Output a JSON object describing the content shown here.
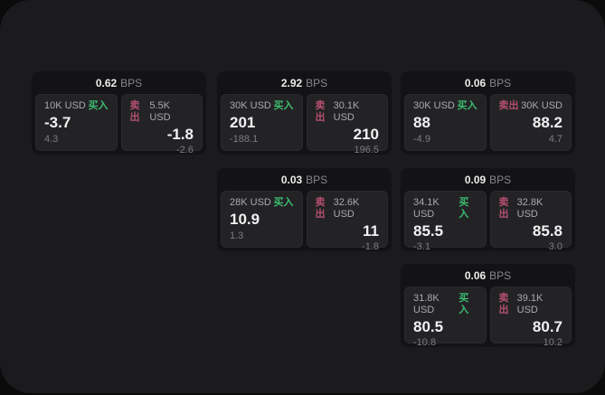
{
  "labels": {
    "bps": "BPS",
    "buy": "买入",
    "sell": "卖出"
  },
  "colors": {
    "buy": "#3dbd6f",
    "sell": "#b5506e",
    "panel_bg": "#1b1b1d",
    "card_bg": "#131315",
    "pane_bg": "#232326",
    "page_bg": "#0b0b0c"
  },
  "cards": [
    {
      "grid": {
        "row": 1,
        "col": 1
      },
      "bps": "0.62",
      "buy": {
        "size": "10K USD",
        "value": "-3.7",
        "sub": "4.3"
      },
      "sell": {
        "size": "5.5K USD",
        "value": "-1.8",
        "sub": "-2.6"
      }
    },
    {
      "grid": {
        "row": 1,
        "col": 2
      },
      "bps": "2.92",
      "buy": {
        "size": "30K USD",
        "value": "201",
        "sub": "-188.1"
      },
      "sell": {
        "size": "30.1K USD",
        "value": "210",
        "sub": "196.5"
      }
    },
    {
      "grid": {
        "row": 1,
        "col": 3
      },
      "bps": "0.06",
      "buy": {
        "size": "30K USD",
        "value": "88",
        "sub": "-4.9"
      },
      "sell": {
        "size": "30K USD",
        "value": "88.2",
        "sub": "4.7"
      }
    },
    {
      "grid": {
        "row": 2,
        "col": 2
      },
      "bps": "0.03",
      "buy": {
        "size": "28K USD",
        "value": "10.9",
        "sub": "1.3"
      },
      "sell": {
        "size": "32.6K USD",
        "value": "11",
        "sub": "-1.8"
      }
    },
    {
      "grid": {
        "row": 2,
        "col": 3
      },
      "bps": "0.09",
      "buy": {
        "size": "34.1K USD",
        "value": "85.5",
        "sub": "-3.1"
      },
      "sell": {
        "size": "32.8K USD",
        "value": "85.8",
        "sub": "3.0"
      }
    },
    {
      "grid": {
        "row": 3,
        "col": 3
      },
      "bps": "0.06",
      "buy": {
        "size": "31.8K USD",
        "value": "80.5",
        "sub": "-10.8"
      },
      "sell": {
        "size": "39.1K USD",
        "value": "80.7",
        "sub": "10.2"
      }
    }
  ]
}
